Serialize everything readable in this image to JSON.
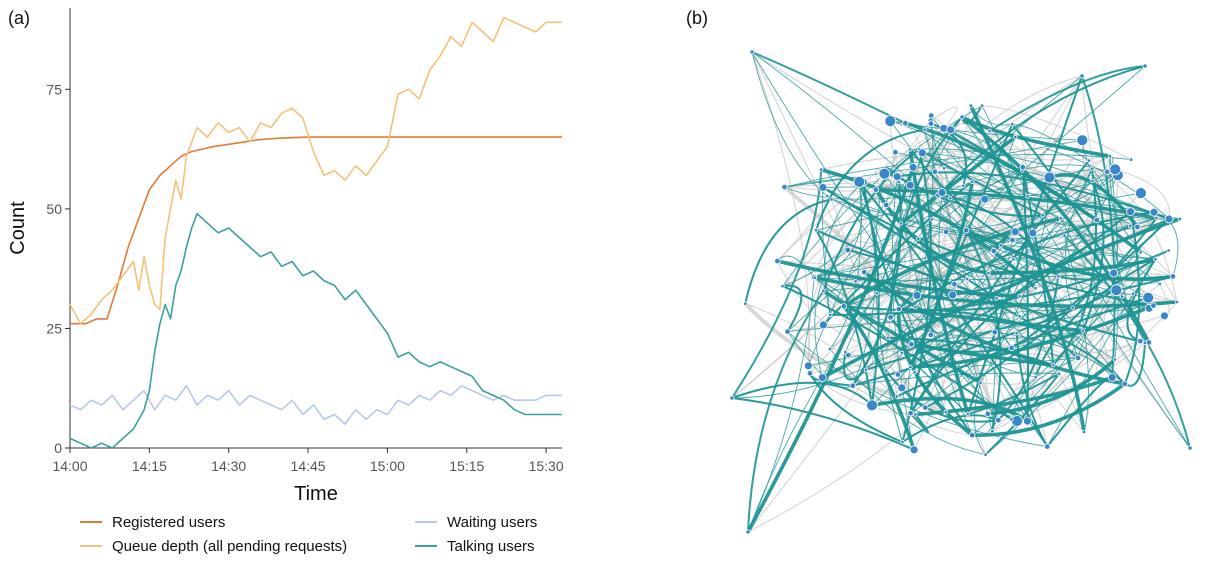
{
  "panels": {
    "a_label": "(a)",
    "b_label": "(b)"
  },
  "chart_data": [
    {
      "type": "line",
      "xlabel": "Time",
      "ylabel": "Count",
      "xlim": [
        "14:00",
        "15:33"
      ],
      "ylim": [
        0,
        92
      ],
      "xticks": [
        "14:00",
        "14:15",
        "14:30",
        "14:45",
        "15:00",
        "15:15",
        "15:30"
      ],
      "yticks": [
        0,
        25,
        50,
        75
      ],
      "grid": false,
      "legend_position": "bottom",
      "series": [
        {
          "name": "Registered users",
          "color": "#e07b39",
          "x": [
            "14:00",
            "14:03",
            "14:05",
            "14:07",
            "14:09",
            "14:11",
            "14:13",
            "14:15",
            "14:17",
            "14:19",
            "14:21",
            "14:23",
            "14:25",
            "14:27",
            "14:30",
            "14:33",
            "14:36",
            "14:40",
            "14:45",
            "14:50",
            "15:00",
            "15:10",
            "15:20",
            "15:33"
          ],
          "values": [
            26,
            26,
            27,
            27,
            34,
            42,
            48,
            54,
            57,
            59,
            61,
            62,
            62.5,
            63,
            63.5,
            64,
            64.5,
            64.8,
            65,
            65,
            65,
            65,
            65,
            65
          ]
        },
        {
          "name": "Queue depth (all pending requests)",
          "color": "#f6c07a",
          "x": [
            "14:00",
            "14:02",
            "14:04",
            "14:06",
            "14:08",
            "14:10",
            "14:12",
            "14:13",
            "14:14",
            "14:15",
            "14:16",
            "14:17",
            "14:18",
            "14:20",
            "14:21",
            "14:22",
            "14:24",
            "14:26",
            "14:28",
            "14:30",
            "14:32",
            "14:34",
            "14:36",
            "14:38",
            "14:40",
            "14:42",
            "14:44",
            "14:46",
            "14:48",
            "14:50",
            "14:52",
            "14:54",
            "14:56",
            "14:58",
            "15:00",
            "15:02",
            "15:04",
            "15:06",
            "15:08",
            "15:10",
            "15:12",
            "15:14",
            "15:16",
            "15:18",
            "15:20",
            "15:22",
            "15:24",
            "15:26",
            "15:28",
            "15:30",
            "15:33"
          ],
          "values": [
            30,
            26,
            28,
            31,
            33,
            36,
            39,
            33,
            40,
            34,
            30,
            29,
            44,
            56,
            52,
            61,
            67,
            65,
            68,
            66,
            67,
            64,
            68,
            67,
            70,
            71,
            69,
            62,
            57,
            58,
            56,
            59,
            57,
            60,
            63,
            74,
            75,
            73,
            79,
            82,
            86,
            84,
            89,
            87,
            85,
            90,
            89,
            88,
            87,
            89,
            89
          ]
        },
        {
          "name": "Waiting users",
          "color": "#b7c9e6",
          "x": [
            "14:00",
            "14:02",
            "14:04",
            "14:06",
            "14:08",
            "14:10",
            "14:12",
            "14:14",
            "14:16",
            "14:18",
            "14:20",
            "14:22",
            "14:24",
            "14:26",
            "14:28",
            "14:30",
            "14:32",
            "14:34",
            "14:36",
            "14:38",
            "14:40",
            "14:42",
            "14:44",
            "14:46",
            "14:48",
            "14:50",
            "14:52",
            "14:54",
            "14:56",
            "14:58",
            "15:00",
            "15:02",
            "15:04",
            "15:06",
            "15:08",
            "15:10",
            "15:12",
            "15:14",
            "15:16",
            "15:18",
            "15:20",
            "15:22",
            "15:24",
            "15:26",
            "15:28",
            "15:30",
            "15:33"
          ],
          "values": [
            9,
            8,
            10,
            9,
            11,
            8,
            10,
            12,
            8,
            11,
            10,
            13,
            9,
            11,
            10,
            12,
            9,
            11,
            10,
            9,
            8,
            10,
            7,
            9,
            6,
            7,
            5,
            8,
            6,
            8,
            7,
            10,
            9,
            11,
            10,
            12,
            11,
            13,
            12,
            11,
            10,
            11,
            10,
            10,
            10,
            11,
            11
          ]
        },
        {
          "name": "Talking users",
          "color": "#3c9fa0",
          "x": [
            "14:00",
            "14:02",
            "14:04",
            "14:06",
            "14:08",
            "14:10",
            "14:12",
            "14:14",
            "14:15",
            "14:16",
            "14:17",
            "14:18",
            "14:19",
            "14:20",
            "14:21",
            "14:22",
            "14:23",
            "14:24",
            "14:25",
            "14:26",
            "14:28",
            "14:30",
            "14:32",
            "14:34",
            "14:36",
            "14:38",
            "14:40",
            "14:42",
            "14:44",
            "14:46",
            "14:48",
            "14:50",
            "14:52",
            "14:54",
            "14:56",
            "14:58",
            "15:00",
            "15:02",
            "15:04",
            "15:06",
            "15:08",
            "15:10",
            "15:12",
            "15:14",
            "15:16",
            "15:18",
            "15:20",
            "15:22",
            "15:24",
            "15:26",
            "15:28",
            "15:30",
            "15:33"
          ],
          "values": [
            2,
            1,
            0,
            1,
            0,
            2,
            4,
            8,
            12,
            20,
            26,
            30,
            27,
            34,
            37,
            42,
            46,
            49,
            48,
            47,
            45,
            46,
            44,
            42,
            40,
            41,
            38,
            39,
            36,
            37,
            35,
            34,
            31,
            33,
            30,
            27,
            24,
            19,
            20,
            18,
            17,
            18,
            17,
            16,
            15,
            12,
            11,
            10,
            8,
            7,
            7,
            7,
            7
          ]
        }
      ]
    }
  ]
}
